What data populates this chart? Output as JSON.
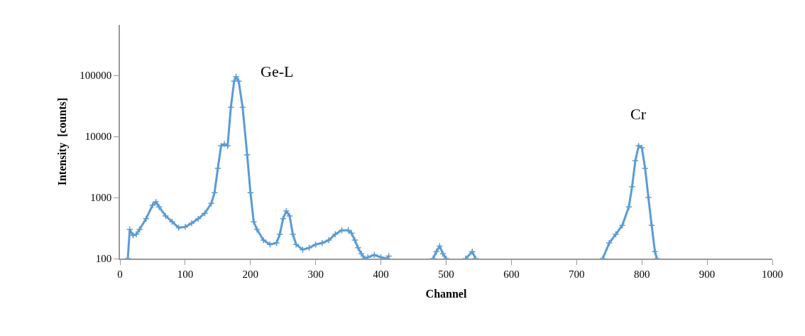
{
  "chart_data": {
    "type": "line",
    "xlabel": "Channel",
    "ylabel": "Intensity  [counts]",
    "log": "y",
    "marker": "cross",
    "line_style": "solid",
    "xlim": [
      0,
      1000
    ],
    "xticks": [
      0,
      100,
      200,
      300,
      400,
      500,
      600,
      700,
      800,
      900,
      1000
    ],
    "ylim": [
      100,
      670000
    ],
    "yticks": [
      100,
      1000,
      10000,
      100000
    ],
    "series": [
      {
        "color": "#5b9bd5",
        "x": [
          12,
          15,
          20,
          25,
          30,
          40,
          50,
          55,
          60,
          70,
          80,
          90,
          100,
          110,
          120,
          130,
          140,
          145,
          150,
          155,
          160,
          165,
          170,
          175,
          178,
          182,
          188,
          195,
          200,
          205,
          210,
          220,
          230,
          240,
          245,
          250,
          255,
          260,
          265,
          270,
          280,
          290,
          300,
          310,
          320,
          330,
          340,
          350,
          355,
          360,
          365,
          370,
          375,
          380,
          390,
          400,
          410,
          412,
          415,
          480,
          485,
          490,
          495,
          500,
          515,
          530,
          540,
          545,
          600,
          740,
          750,
          760,
          770,
          780,
          785,
          790,
          795,
          800,
          805,
          810,
          815,
          820,
          823
        ],
        "values": [
          100,
          300,
          240,
          250,
          300,
          450,
          750,
          850,
          700,
          500,
          400,
          320,
          330,
          380,
          450,
          550,
          800,
          1200,
          3000,
          7000,
          7500,
          7000,
          30000,
          80000,
          95000,
          80000,
          30000,
          5000,
          1200,
          400,
          300,
          200,
          170,
          180,
          250,
          450,
          600,
          500,
          250,
          170,
          140,
          150,
          170,
          180,
          200,
          250,
          290,
          290,
          260,
          200,
          150,
          120,
          100,
          105,
          115,
          105,
          100,
          110,
          null,
          100,
          130,
          160,
          120,
          100,
          null,
          100,
          130,
          100,
          null,
          100,
          180,
          250,
          350,
          700,
          1500,
          4000,
          7000,
          6500,
          3000,
          1000,
          350,
          130,
          100
        ]
      }
    ],
    "annotations": [
      "Ge-L",
      "Cr"
    ]
  }
}
